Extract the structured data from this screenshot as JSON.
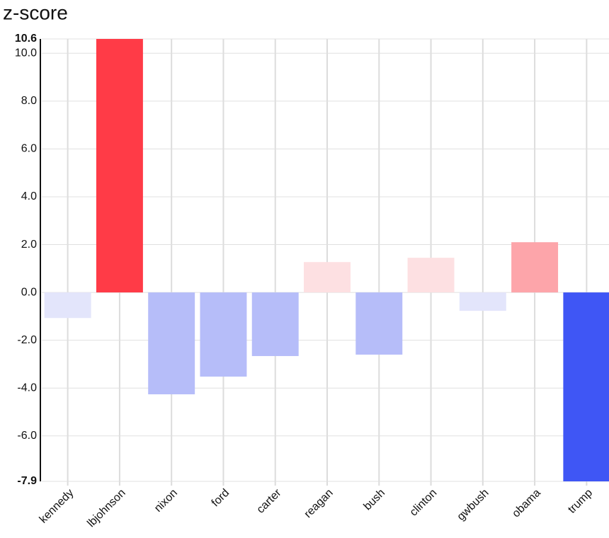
{
  "chart_data": {
    "type": "bar",
    "title": "z-score",
    "categories": [
      "kennedy",
      "lbjohnson",
      "nixon",
      "ford",
      "carter",
      "reagan",
      "bush",
      "clinton",
      "gwbush",
      "obama",
      "trump"
    ],
    "values": [
      -1.07,
      10.6,
      -4.26,
      -3.52,
      -2.66,
      1.27,
      -2.6,
      1.45,
      -0.77,
      2.1,
      -7.9
    ],
    "colors": [
      "#e3e5fb",
      "#ff3b47",
      "#b6bdf9",
      "#b6bdf9",
      "#b6bdf9",
      "#fde0e2",
      "#b6bdf9",
      "#fde0e2",
      "#e3e5fb",
      "#fda5aa",
      "#3f56f5"
    ],
    "ylim": [
      -7.9,
      10.6
    ],
    "yticks": [
      -7.9,
      {
        "value": -6,
        "label": "-6.0"
      },
      {
        "value": -4,
        "label": "-4.0"
      },
      {
        "value": -2,
        "label": "-2.0"
      },
      {
        "value": 0,
        "label": "0.0"
      },
      {
        "value": 2,
        "label": "2.0"
      },
      {
        "value": 4,
        "label": "4.0"
      },
      {
        "value": 6,
        "label": "6.0"
      },
      {
        "value": 8,
        "label": "8.0"
      },
      {
        "value": 10,
        "label": "10.0"
      },
      10.6
    ],
    "grid": true
  }
}
